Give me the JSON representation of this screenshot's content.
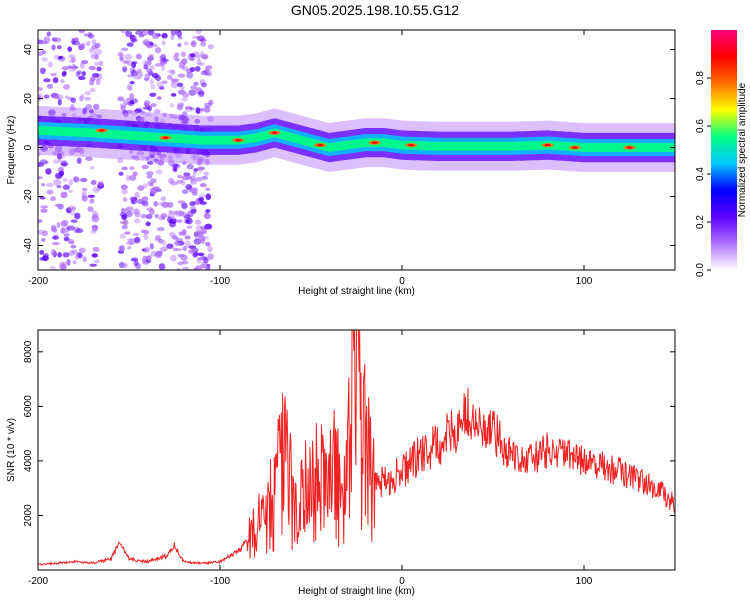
{
  "title": "GN05.2025.198.10.55.G12",
  "chart_data": [
    {
      "type": "heatmap",
      "xlabel": "Height of straight line (km)",
      "ylabel": "Frequency (Hz)",
      "xlim": [
        -200,
        150
      ],
      "ylim": [
        -50,
        48
      ],
      "xticks": [
        -200,
        -100,
        0,
        100
      ],
      "yticks": [
        -40,
        -20,
        0,
        20,
        40
      ],
      "colorbar": {
        "label": "Normalized spectral amplitude",
        "range": [
          0,
          1
        ],
        "ticks": [
          "0.0",
          "0.2",
          "0.4",
          "0.6",
          "0.8"
        ],
        "colormap": [
          "#ffffff",
          "#b070ff",
          "#5a00ff",
          "#0000ff",
          "#00c8ff",
          "#00ff80",
          "#ffff00",
          "#ff7000",
          "#ff0000",
          "#ff0080"
        ]
      },
      "ridge": {
        "x": [
          -200,
          -170,
          -150,
          -130,
          -110,
          -90,
          -80,
          -70,
          -60,
          -50,
          -40,
          -30,
          -20,
          -10,
          0,
          20,
          40,
          60,
          80,
          100,
          120,
          150
        ],
        "freq": [
          7,
          6,
          5,
          4,
          3,
          3,
          4,
          6,
          4,
          2,
          0,
          1,
          2,
          2,
          1,
          0.5,
          0.5,
          0.5,
          1,
          0,
          0,
          0
        ]
      },
      "noise_bands": [
        [
          -200,
          -165
        ],
        [
          -155,
          -130
        ],
        [
          -128,
          -105
        ]
      ]
    },
    {
      "type": "line",
      "xlabel": "Height of straight line (km)",
      "ylabel": "SNR (10 * v/v)",
      "xlim": [
        -200,
        150
      ],
      "ylim": [
        0,
        8800
      ],
      "xticks": [
        -200,
        -100,
        0,
        100
      ],
      "yticks": [
        2000,
        4000,
        6000,
        8000
      ],
      "color": "#ee2222",
      "series": [
        {
          "x": [
            -200,
            -190,
            -180,
            -170,
            -160,
            -155,
            -150,
            -140,
            -130,
            -125,
            -120,
            -110,
            -100,
            -90,
            -80,
            -70,
            -65,
            -60,
            -50,
            -40,
            -30,
            -25,
            -22,
            -18,
            -10,
            0,
            10,
            20,
            30,
            35,
            40,
            50,
            60,
            70,
            80,
            90,
            100,
            110,
            120,
            130,
            140,
            150
          ],
          "values": [
            200,
            250,
            300,
            250,
            400,
            1000,
            400,
            300,
            500,
            900,
            300,
            250,
            300,
            700,
            1500,
            2800,
            4000,
            2500,
            3000,
            3500,
            3200,
            8800,
            5000,
            3500,
            3200,
            3600,
            4200,
            4600,
            5200,
            5800,
            5300,
            5000,
            4300,
            4000,
            4400,
            4200,
            4000,
            3800,
            3600,
            3300,
            3000,
            2400
          ]
        }
      ]
    }
  ]
}
